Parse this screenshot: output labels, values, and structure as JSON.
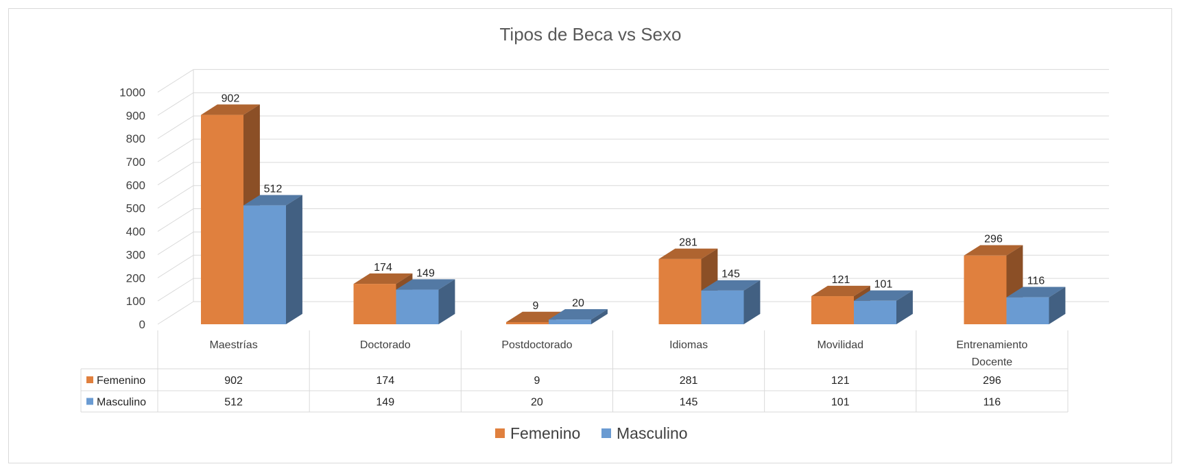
{
  "chart_data": {
    "type": "bar",
    "title": "Tipos de Beca vs Sexo",
    "categories": [
      "Maestrías",
      "Doctorado",
      "Postdoctorado",
      "Idiomas",
      "Movilidad",
      "Entrenamiento Docente"
    ],
    "series": [
      {
        "name": "Femenino",
        "values": [
          902,
          174,
          9,
          281,
          121,
          296
        ],
        "color": "#E0803E"
      },
      {
        "name": "Masculino",
        "values": [
          512,
          149,
          20,
          145,
          101,
          116
        ],
        "color": "#6A9BD2"
      }
    ],
    "yticks": [
      "0",
      "100",
      "200",
      "300",
      "400",
      "500",
      "600",
      "700",
      "800",
      "900",
      "1000"
    ],
    "ylim": [
      0,
      1000
    ],
    "grid": true,
    "legend": "bottom",
    "data_table": true
  }
}
